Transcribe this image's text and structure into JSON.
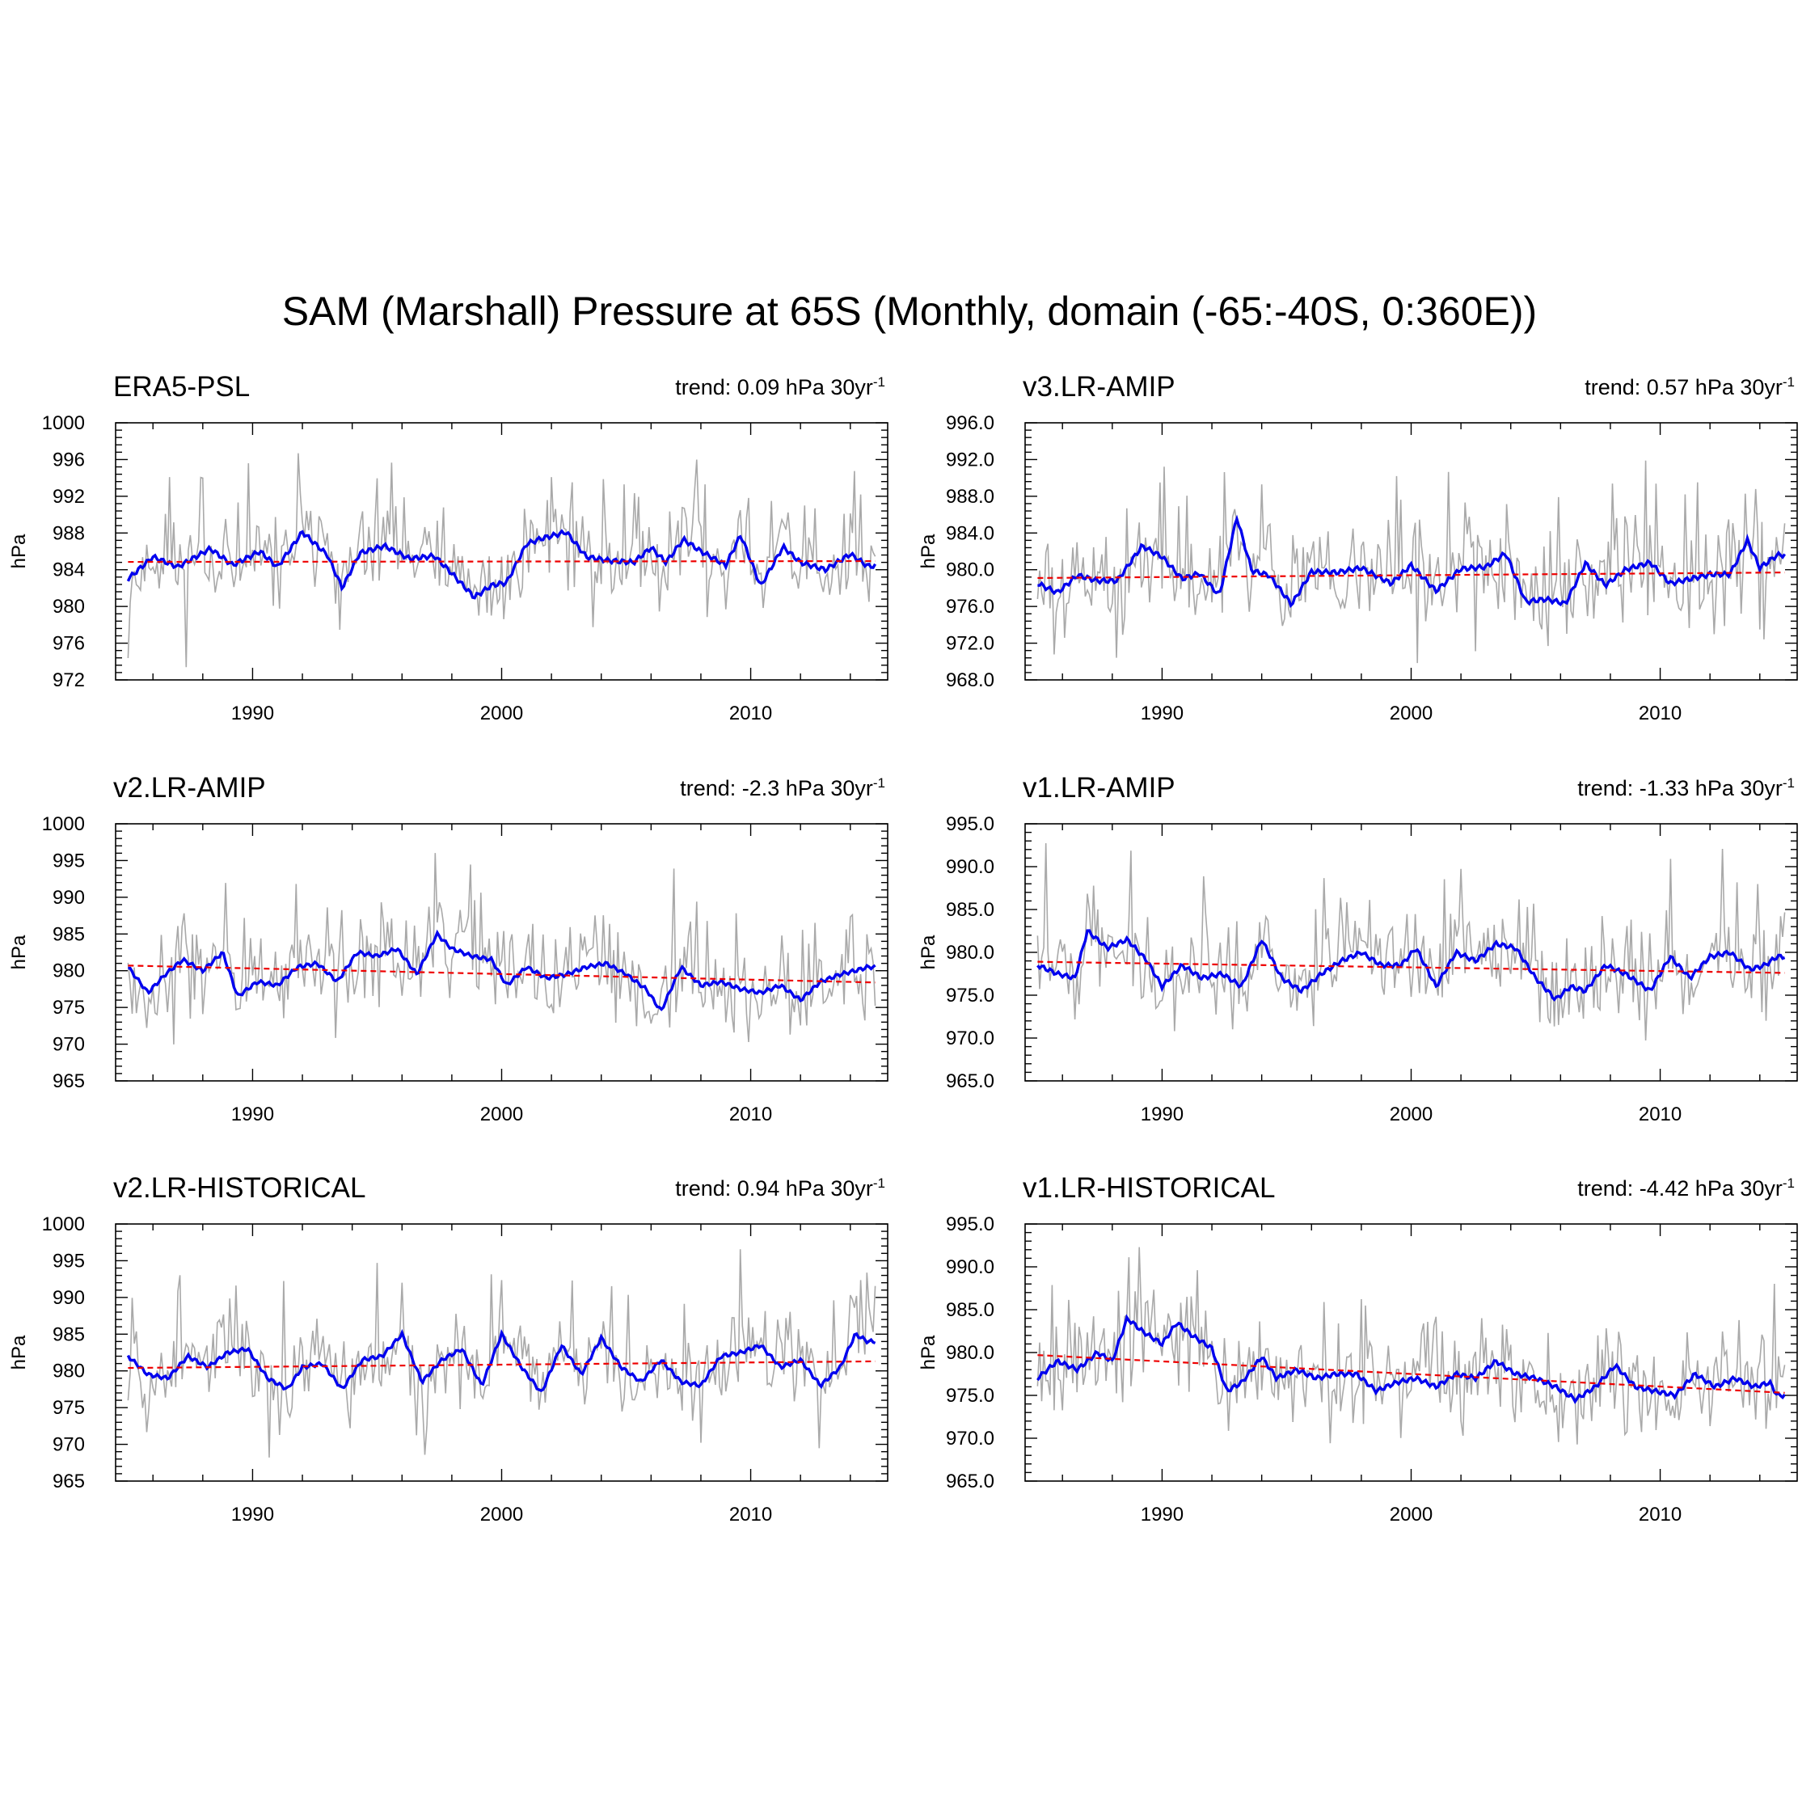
{
  "title": "SAM (Marshall) Pressure at 65S (Monthly, domain (-65:-40S, 0:360E))",
  "colors": {
    "raw": "#a9a9a9",
    "smooth": "#0000ee",
    "trend": "#ee0000",
    "axis": "#000000"
  },
  "chart_data": [
    {
      "type": "line",
      "name": "ERA5-PSL",
      "trend_text": "trend: 0.09 hPa 30yr",
      "trend_sup": "-1",
      "ylabel": "hPa",
      "xlim": [
        1984.5,
        2015.5
      ],
      "ylim": [
        972,
        1000
      ],
      "xticks": [
        1990,
        2000,
        2010
      ],
      "yticks": [
        972,
        976,
        980,
        984,
        988,
        992,
        996,
        1000
      ],
      "yticklabels": [
        "972",
        "976",
        "980",
        "984",
        "988",
        "992",
        "996",
        "1000"
      ],
      "x_start": 1985.0,
      "x_end": 2014.96,
      "mean": 984.9,
      "std": 3.8,
      "smooth_amp": 2.3,
      "seed": 11,
      "trend_line": {
        "x": [
          1985.0,
          2015.0
        ],
        "y": [
          984.85,
          984.94
        ]
      },
      "smooth_anchors": {
        "x": [
          1985.0,
          1986.0,
          1987.0,
          1988.3,
          1989.2,
          1990.3,
          1991.0,
          1992.0,
          1993.0,
          1993.6,
          1994.3,
          1995.3,
          1996.3,
          1997.3,
          1998.0,
          1998.9,
          1999.6,
          2000.2,
          2001.0,
          2001.6,
          2002.6,
          2003.4,
          2004.3,
          2005.3,
          2006.0,
          2006.6,
          2007.3,
          2008.0,
          2009.0,
          2009.6,
          2010.4,
          2011.3,
          2012.0,
          2013.0,
          2014.0,
          2014.7
        ],
        "y": [
          983.0,
          985.4,
          984.3,
          986.3,
          984.5,
          986.0,
          984.3,
          988.1,
          985.6,
          982.0,
          985.8,
          986.6,
          985.2,
          985.5,
          983.6,
          981.0,
          982.3,
          982.6,
          986.8,
          987.4,
          988.1,
          985.4,
          985.0,
          984.8,
          986.4,
          984.8,
          987.3,
          986.0,
          984.5,
          987.8,
          982.2,
          986.5,
          984.8,
          984.0,
          985.7,
          984.4
        ]
      }
    },
    {
      "type": "line",
      "name": "v3.LR-AMIP",
      "trend_text": "trend: 0.57 hPa 30yr",
      "trend_sup": "-1",
      "ylabel": "hPa",
      "xlim": [
        1984.5,
        2015.5
      ],
      "ylim": [
        968,
        996
      ],
      "xticks": [
        1990,
        2000,
        2010
      ],
      "yticks": [
        968,
        972,
        976,
        980,
        984,
        988,
        992,
        996
      ],
      "yticklabels": [
        "968.0",
        "972.0",
        "976.0",
        "980.0",
        "984.0",
        "988.0",
        "992.0",
        "996.0"
      ],
      "x_start": 1985.0,
      "x_end": 2014.96,
      "mean": 979.5,
      "std": 4.2,
      "smooth_amp": 2.0,
      "seed": 23,
      "trend_line": {
        "x": [
          1985.0,
          2015.0
        ],
        "y": [
          979.1,
          979.7
        ]
      },
      "smooth_anchors": {
        "x": [
          1985.0,
          1985.8,
          1986.6,
          1987.4,
          1988.2,
          1989.2,
          1990.0,
          1990.8,
          1991.5,
          1992.3,
          1993.0,
          1993.6,
          1994.3,
          1995.2,
          1996.0,
          1997.0,
          1998.0,
          1999.2,
          2000.0,
          2001.0,
          2002.0,
          2003.0,
          2003.8,
          2004.6,
          2005.4,
          2006.2,
          2007.0,
          2007.8,
          2008.6,
          2009.6,
          2010.4,
          2011.2,
          2012.0,
          2012.8,
          2013.5,
          2014.0,
          2014.7
        ],
        "y": [
          978.5,
          977.5,
          979.4,
          978.8,
          978.8,
          982.6,
          981.4,
          979.0,
          979.6,
          977.2,
          985.7,
          979.9,
          979.4,
          976.2,
          979.8,
          979.7,
          980.2,
          978.5,
          980.5,
          977.7,
          980.1,
          980.3,
          981.8,
          976.5,
          976.8,
          976.3,
          980.7,
          978.3,
          980.0,
          980.8,
          978.5,
          979.0,
          979.5,
          979.5,
          983.2,
          980.2,
          981.6
        ]
      }
    },
    {
      "type": "line",
      "name": "v2.LR-AMIP",
      "trend_text": "trend: -2.3 hPa 30yr",
      "trend_sup": "-1",
      "ylabel": "hPa",
      "xlim": [
        1984.5,
        2015.5
      ],
      "ylim": [
        965,
        1000
      ],
      "xticks": [
        1990,
        2000,
        2010
      ],
      "yticks": [
        965,
        970,
        975,
        980,
        985,
        990,
        995,
        1000
      ],
      "yticklabels": [
        "965",
        "970",
        "975",
        "980",
        "985",
        "990",
        "995",
        "1000"
      ],
      "x_start": 1985.0,
      "x_end": 2014.96,
      "mean": 979.6,
      "std": 4.6,
      "smooth_amp": 2.5,
      "seed": 37,
      "trend_line": {
        "x": [
          1985.0,
          2015.0
        ],
        "y": [
          980.7,
          978.4
        ]
      },
      "smooth_anchors": {
        "x": [
          1985.0,
          1985.8,
          1986.5,
          1987.2,
          1988.0,
          1988.8,
          1989.4,
          1990.2,
          1991.0,
          1991.8,
          1992.6,
          1993.4,
          1994.2,
          1995.0,
          1995.8,
          1996.6,
          1997.4,
          1998.0,
          1998.8,
          1999.6,
          2000.2,
          2001.0,
          2001.8,
          2002.6,
          2003.4,
          2004.2,
          2005.0,
          2005.8,
          2006.4,
          2007.2,
          2008.0,
          2008.8,
          2009.6,
          2010.4,
          2011.2,
          2012.0,
          2012.8,
          2013.6,
          2014.2,
          2014.7
        ],
        "y": [
          980.5,
          977.0,
          979.5,
          981.5,
          980.0,
          982.5,
          976.5,
          978.5,
          978.0,
          980.5,
          981.0,
          978.5,
          982.5,
          982.0,
          983.0,
          979.5,
          985.0,
          983.0,
          982.0,
          981.5,
          978.0,
          980.5,
          979.0,
          979.5,
          980.5,
          981.0,
          979.5,
          977.5,
          974.5,
          980.5,
          978.0,
          978.5,
          977.5,
          977.0,
          978.0,
          976.0,
          978.5,
          979.5,
          980.0,
          980.5
        ]
      }
    },
    {
      "type": "line",
      "name": "v1.LR-AMIP",
      "trend_text": "trend: -1.33 hPa 30yr",
      "trend_sup": "-1",
      "ylabel": "hPa",
      "xlim": [
        1984.5,
        2015.5
      ],
      "ylim": [
        965,
        995
      ],
      "xticks": [
        1990,
        2000,
        2010
      ],
      "yticks": [
        965,
        970,
        975,
        980,
        985,
        990,
        995
      ],
      "yticklabels": [
        "965.0",
        "970.0",
        "975.0",
        "980.0",
        "985.0",
        "990.0",
        "995.0"
      ],
      "x_start": 1985.0,
      "x_end": 2014.96,
      "mean": 978.3,
      "std": 4.3,
      "smooth_amp": 2.3,
      "seed": 41,
      "trend_line": {
        "x": [
          1985.0,
          2015.0
        ],
        "y": [
          978.9,
          977.6
        ]
      },
      "smooth_anchors": {
        "x": [
          1985.0,
          1985.8,
          1986.5,
          1987.0,
          1987.8,
          1988.6,
          1989.4,
          1990.0,
          1990.8,
          1991.6,
          1992.4,
          1993.2,
          1994.0,
          1994.8,
          1995.6,
          1996.4,
          1997.2,
          1998.0,
          1998.8,
          1999.6,
          2000.2,
          2001.0,
          2001.8,
          2002.6,
          2003.4,
          2004.2,
          2005.0,
          2005.8,
          2006.4,
          2007.0,
          2007.8,
          2008.6,
          2009.6,
          2010.4,
          2011.2,
          2012.0,
          2012.8,
          2013.6,
          2014.2,
          2014.7
        ],
        "y": [
          978.5,
          977.5,
          977.0,
          982.5,
          980.5,
          981.5,
          979.0,
          976.0,
          978.5,
          977.0,
          977.5,
          976.0,
          981.5,
          977.0,
          975.5,
          977.5,
          979.0,
          980.0,
          978.5,
          978.5,
          980.5,
          976.0,
          980.0,
          979.0,
          981.0,
          980.5,
          977.0,
          974.5,
          976.0,
          975.5,
          978.5,
          977.5,
          975.5,
          979.5,
          977.0,
          979.5,
          980.0,
          978.0,
          978.5,
          979.5
        ]
      }
    },
    {
      "type": "line",
      "name": "v2.LR-HISTORICAL",
      "trend_text": "trend: 0.94 hPa 30yr",
      "trend_sup": "-1",
      "ylabel": "hPa",
      "xlim": [
        1984.5,
        2015.5
      ],
      "ylim": [
        965,
        1000
      ],
      "xticks": [
        1990,
        2000,
        2010
      ],
      "yticks": [
        965,
        970,
        975,
        980,
        985,
        990,
        995,
        1000
      ],
      "yticklabels": [
        "965",
        "970",
        "975",
        "980",
        "985",
        "990",
        "995",
        "1000"
      ],
      "x_start": 1985.0,
      "x_end": 2014.96,
      "mean": 980.8,
      "std": 4.6,
      "smooth_amp": 2.5,
      "seed": 53,
      "trend_line": {
        "x": [
          1985.0,
          2015.0
        ],
        "y": [
          980.4,
          981.3
        ]
      },
      "smooth_anchors": {
        "x": [
          1985.0,
          1985.8,
          1986.6,
          1987.4,
          1988.2,
          1989.0,
          1989.8,
          1990.6,
          1991.4,
          1992.0,
          1992.8,
          1993.6,
          1994.4,
          1995.2,
          1996.0,
          1996.8,
          1997.6,
          1998.4,
          1999.2,
          2000.0,
          2000.8,
          2001.6,
          2002.4,
          2003.2,
          2004.0,
          2004.8,
          2005.6,
          2006.4,
          2007.2,
          2008.0,
          2008.8,
          2009.6,
          2010.4,
          2011.2,
          2012.0,
          2012.8,
          2013.6,
          2014.2,
          2014.7
        ],
        "y": [
          982.0,
          979.5,
          979.0,
          982.0,
          980.5,
          982.5,
          983.0,
          979.0,
          977.5,
          980.5,
          981.0,
          977.5,
          981.5,
          982.0,
          985.0,
          978.5,
          981.5,
          983.0,
          978.0,
          985.0,
          980.5,
          977.0,
          983.5,
          979.5,
          984.5,
          980.5,
          978.5,
          981.5,
          978.5,
          978.0,
          982.0,
          982.5,
          983.5,
          980.5,
          981.5,
          978.0,
          980.5,
          985.0,
          984.0
        ]
      }
    },
    {
      "type": "line",
      "name": "v1.LR-HISTORICAL",
      "trend_text": "trend: -4.42 hPa 30yr",
      "trend_sup": "-1",
      "ylabel": "hPa",
      "xlim": [
        1984.5,
        2015.5
      ],
      "ylim": [
        965,
        995
      ],
      "xticks": [
        1990,
        2000,
        2010
      ],
      "yticks": [
        965,
        970,
        975,
        980,
        985,
        990,
        995
      ],
      "yticklabels": [
        "965.0",
        "970.0",
        "975.0",
        "980.0",
        "985.0",
        "990.0",
        "995.0"
      ],
      "x_start": 1985.0,
      "x_end": 2014.96,
      "mean": 977.5,
      "std": 4.0,
      "smooth_amp": 2.0,
      "seed": 67,
      "trend_line": {
        "x": [
          1985.0,
          2015.0
        ],
        "y": [
          979.7,
          975.3
        ]
      },
      "smooth_anchors": {
        "x": [
          1985.0,
          1985.8,
          1986.6,
          1987.4,
          1988.0,
          1988.6,
          1989.2,
          1990.0,
          1990.6,
          1991.2,
          1992.0,
          1992.6,
          1993.2,
          1994.0,
          1994.6,
          1995.4,
          1996.2,
          1997.0,
          1997.8,
          1998.6,
          1999.4,
          2000.2,
          2001.0,
          2001.8,
          2002.6,
          2003.4,
          2004.2,
          2005.0,
          2005.8,
          2006.6,
          2007.4,
          2008.2,
          2009.0,
          2009.8,
          2010.6,
          2011.4,
          2012.2,
          2013.0,
          2013.8,
          2014.4,
          2014.7
        ],
        "y": [
          977.0,
          979.0,
          978.0,
          980.0,
          979.0,
          984.0,
          982.5,
          981.0,
          983.5,
          982.0,
          980.5,
          975.5,
          976.5,
          979.5,
          977.0,
          978.0,
          977.0,
          977.5,
          977.5,
          975.5,
          976.5,
          977.0,
          976.0,
          977.5,
          977.0,
          979.0,
          977.5,
          977.0,
          976.0,
          974.5,
          976.0,
          978.5,
          976.0,
          975.5,
          975.0,
          977.5,
          976.0,
          977.0,
          976.0,
          976.5,
          975.0
        ]
      }
    }
  ]
}
